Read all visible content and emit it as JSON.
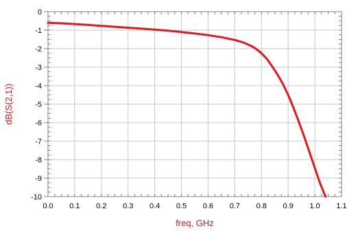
{
  "chart_data": {
    "type": "line",
    "xlabel": "freq, GHz",
    "ylabel": "dB(S(2,1))",
    "xlim": [
      0.0,
      1.1
    ],
    "ylim": [
      -10,
      0
    ],
    "x_ticks": [
      0.0,
      0.1,
      0.2,
      0.3,
      0.4,
      0.5,
      0.6,
      0.7,
      0.8,
      0.9,
      1.0,
      1.1
    ],
    "x_tick_labels": [
      "0.0",
      "0.1",
      "0.2",
      "0.3",
      "0.4",
      "0.5",
      "0.6",
      "0.7",
      "0.8",
      "0.9",
      "1.0",
      "1.1"
    ],
    "y_ticks": [
      0,
      -1,
      -2,
      -3,
      -4,
      -5,
      -6,
      -7,
      -8,
      -9,
      -10
    ],
    "y_tick_labels": [
      "0",
      "-1",
      "-2",
      "-3",
      "-4",
      "-5",
      "-6",
      "-7",
      "-8",
      "-9",
      "-10"
    ],
    "grid": true,
    "series": [
      {
        "color": "#e8161b",
        "x": [
          0.0,
          0.05,
          0.1,
          0.15,
          0.2,
          0.25,
          0.3,
          0.35,
          0.4,
          0.45,
          0.5,
          0.55,
          0.6,
          0.65,
          0.7,
          0.72,
          0.74,
          0.76,
          0.78,
          0.8,
          0.82,
          0.84,
          0.86,
          0.88,
          0.9,
          0.92,
          0.94,
          0.96,
          0.98,
          1.0,
          1.02,
          1.04
        ],
        "y": [
          -0.6,
          -0.63,
          -0.67,
          -0.72,
          -0.77,
          -0.82,
          -0.87,
          -0.92,
          -0.97,
          -1.03,
          -1.1,
          -1.18,
          -1.27,
          -1.38,
          -1.53,
          -1.61,
          -1.71,
          -1.84,
          -2.01,
          -2.25,
          -2.55,
          -2.95,
          -3.4,
          -3.9,
          -4.5,
          -5.2,
          -5.95,
          -6.75,
          -7.6,
          -8.45,
          -9.3,
          -10.0
        ]
      }
    ]
  },
  "colors": {
    "axis_label": "#e8161b",
    "grid": "#c8c8c8",
    "frame": "#808080"
  }
}
